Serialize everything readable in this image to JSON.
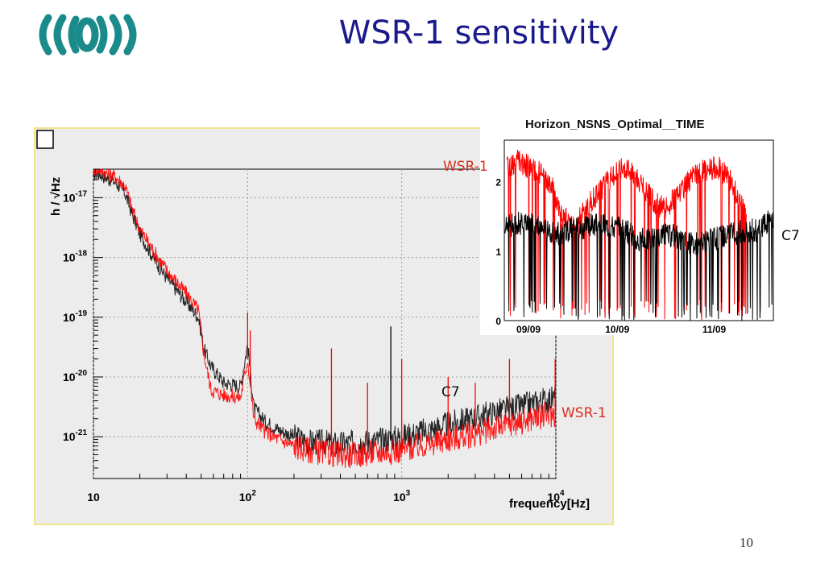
{
  "slide": {
    "title": "WSR-1 sensitivity",
    "page_number": "10"
  },
  "colors": {
    "title": "#1a1a8c",
    "series_wsr": "#ff0000",
    "series_c7": "#000000",
    "label_red": "#d83020",
    "logo": "#1b8a8a"
  },
  "logo": {
    "icon": "virgo-logo-icon"
  },
  "annotations": {
    "c7_main": "C7",
    "wsr_main": "WSR-1",
    "wsr_inset": "WSR-1",
    "c7_inset": "C7"
  },
  "chart_data": [
    {
      "type": "line",
      "title": "",
      "xlabel": "frequency[Hz]",
      "ylabel": "h / √Hz",
      "xscale": "log",
      "yscale": "log",
      "xlim": [
        10,
        10000
      ],
      "ylim": [
        2e-22,
        3e-17
      ],
      "x_ticks": [
        "10",
        "10^2",
        "10^3",
        "10^4"
      ],
      "y_ticks": [
        "10^-17",
        "10^-18",
        "10^-19",
        "10^-20",
        "10^-21"
      ],
      "grid": true,
      "series": [
        {
          "name": "C7",
          "x": [
            11,
            12,
            14,
            16,
            18,
            20,
            25,
            30,
            40,
            48,
            52,
            58,
            70,
            90,
            100,
            110,
            130,
            160,
            200,
            250,
            300,
            400,
            500,
            700,
            1000,
            1500,
            2000,
            3000,
            4000,
            6000,
            8000,
            10000
          ],
          "y": [
            2.5e-17,
            2.2e-17,
            1.8e-17,
            1.2e-17,
            5e-18,
            2.5e-18,
            9e-19,
            4.5e-19,
            1.8e-19,
            1e-19,
            3e-20,
            1.5e-20,
            8e-21,
            7e-21,
            3.5e-20,
            3e-21,
            1.8e-21,
            1.3e-21,
            1e-21,
            8e-22,
            8e-22,
            7.5e-22,
            8e-22,
            8.5e-22,
            1e-21,
            1.3e-21,
            1.6e-21,
            2.1e-21,
            2.6e-21,
            3.2e-21,
            4e-21,
            4.4e-21
          ]
        },
        {
          "name": "WSR-1",
          "x": [
            11,
            12,
            14,
            16,
            18,
            20,
            25,
            30,
            40,
            48,
            52,
            58,
            70,
            90,
            100,
            110,
            130,
            160,
            200,
            250,
            300,
            400,
            500,
            700,
            1000,
            1500,
            2000,
            3000,
            4000,
            6000,
            8000,
            10000
          ],
          "y": [
            3e-17,
            2.6e-17,
            2.2e-17,
            1.6e-17,
            6e-18,
            3e-18,
            1.2e-18,
            6e-19,
            2.5e-19,
            1.3e-19,
            2.5e-20,
            6e-21,
            5e-21,
            4.5e-21,
            2e-20,
            2e-21,
            1.2e-21,
            9e-22,
            7e-22,
            6e-22,
            5.5e-22,
            5e-22,
            5e-22,
            5.5e-22,
            6e-22,
            7.5e-22,
            9e-22,
            1.1e-21,
            1.4e-21,
            1.8e-21,
            2.2e-21,
            2.4e-21
          ]
        }
      ],
      "spikes": [
        {
          "series": "WSR-1",
          "x": 50,
          "y": 7e-20
        },
        {
          "series": "WSR-1",
          "x": 100,
          "y": 1.2e-19
        },
        {
          "series": "WSR-1",
          "x": 104,
          "y": 6e-20
        },
        {
          "series": "WSR-1",
          "x": 350,
          "y": 3e-20
        },
        {
          "series": "WSR-1",
          "x": 600,
          "y": 8e-21
        },
        {
          "series": "C7",
          "x": 850,
          "y": 7e-20
        },
        {
          "series": "WSR-1",
          "x": 1000,
          "y": 2e-20
        },
        {
          "series": "WSR-1",
          "x": 2000,
          "y": 1e-20
        },
        {
          "series": "WSR-1",
          "x": 3000,
          "y": 8e-21
        },
        {
          "series": "WSR-1",
          "x": 5000,
          "y": 2e-20
        },
        {
          "series": "WSR-1",
          "x": 9900,
          "y": 2e-20
        }
      ]
    },
    {
      "type": "line",
      "title": "Horizon_NSNS_Optimal__TIME",
      "xlabel": "",
      "ylabel": "",
      "x_ticks": [
        "09/09",
        "10/09",
        "11/09"
      ],
      "y_ticks": [
        "0",
        "1",
        "2"
      ],
      "ylim": [
        0,
        2.6
      ],
      "grid": false,
      "series": [
        {
          "name": "WSR-1",
          "x": [
            0.01,
            0.05,
            0.1,
            0.14,
            0.18,
            0.22,
            0.24,
            0.28,
            0.32,
            0.36,
            0.4,
            0.44,
            0.48,
            0.52,
            0.56,
            0.6,
            0.64,
            0.68,
            0.72,
            0.76,
            0.8,
            0.84,
            0.88,
            0.9
          ],
          "y": [
            2.2,
            2.3,
            2.2,
            2.1,
            1.9,
            1.5,
            1.4,
            1.5,
            1.7,
            1.9,
            2.1,
            2.2,
            2.1,
            1.9,
            1.7,
            1.6,
            1.8,
            2.0,
            2.1,
            2.2,
            2.2,
            2.0,
            1.7,
            1.5
          ]
        },
        {
          "name": "C7",
          "x": [
            0.0,
            0.05,
            0.1,
            0.15,
            0.2,
            0.25,
            0.3,
            0.35,
            0.4,
            0.45,
            0.5,
            0.55,
            0.6,
            0.65,
            0.7,
            0.75,
            0.8,
            0.85,
            0.9,
            0.95,
            1.0
          ],
          "y": [
            1.35,
            1.4,
            1.38,
            1.3,
            1.25,
            1.3,
            1.35,
            1.4,
            1.38,
            1.3,
            1.15,
            1.2,
            1.25,
            1.2,
            1.1,
            1.15,
            1.2,
            1.25,
            1.3,
            1.3,
            1.5
          ]
        }
      ]
    }
  ]
}
